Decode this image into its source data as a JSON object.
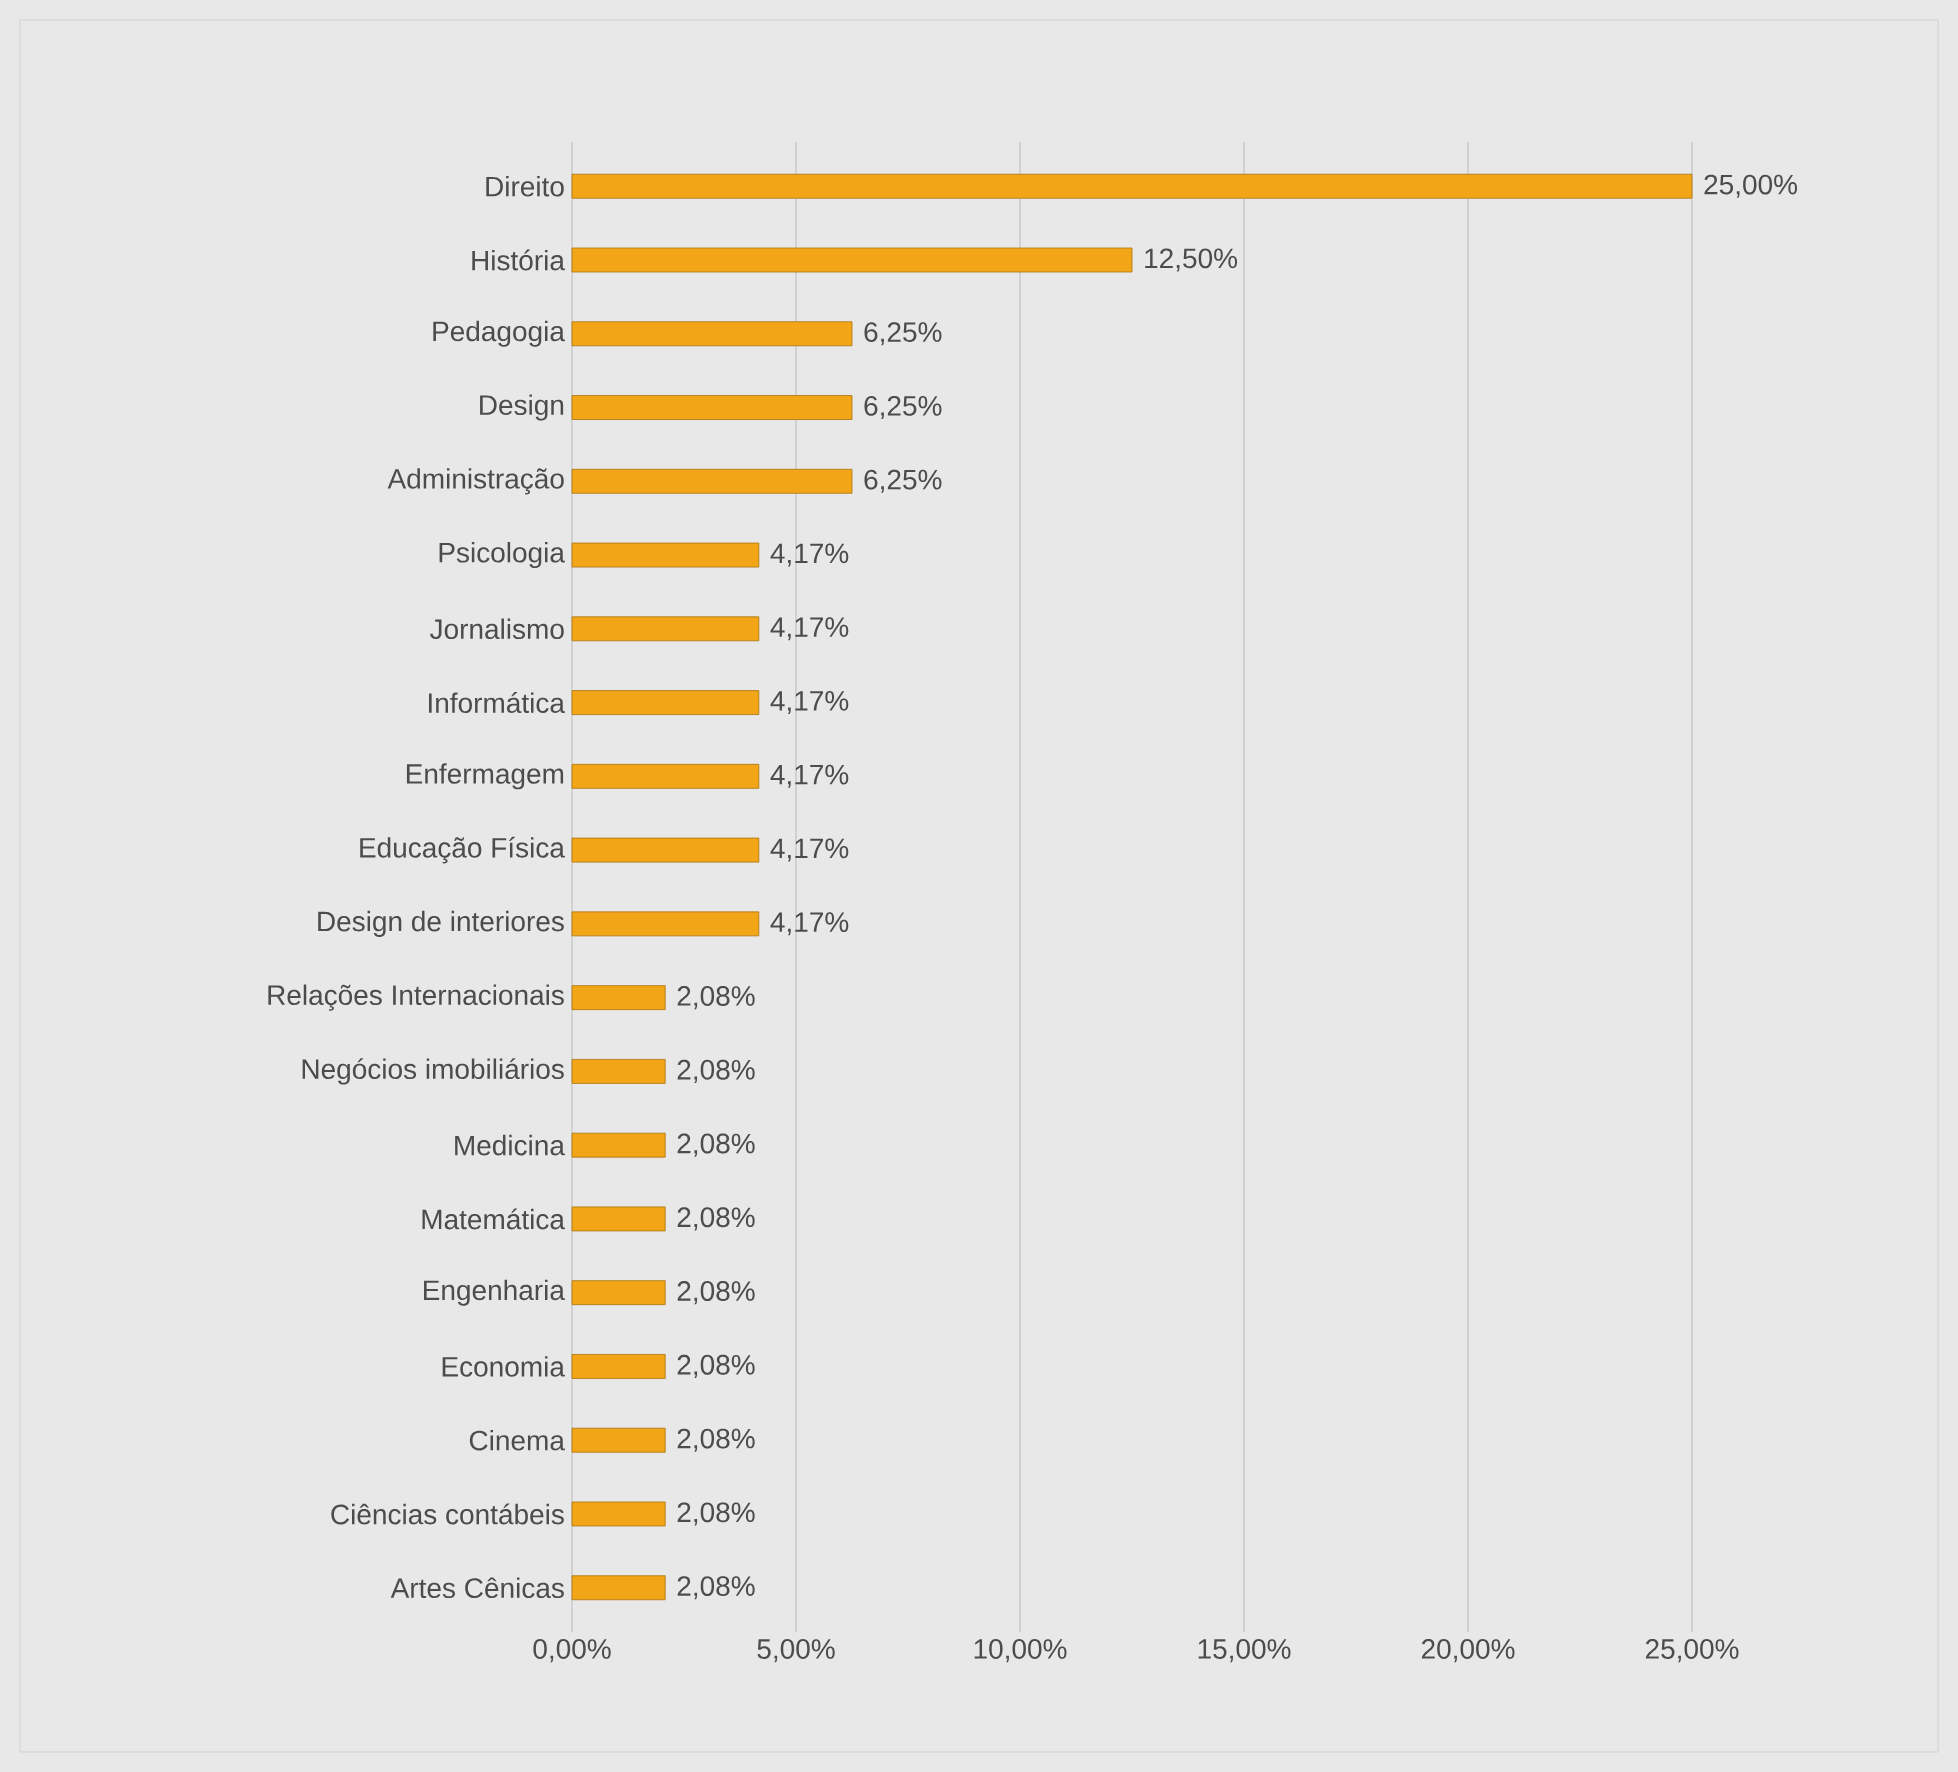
{
  "chart_data": {
    "type": "bar",
    "orientation": "horizontal",
    "color": "#f2a516",
    "categories": [
      "Direito",
      "História",
      "Pedagogia",
      "Design",
      "Administração",
      "Psicologia",
      "Jornalismo",
      "Informática",
      "Enfermagem",
      "Educação Física",
      "Design de interiores",
      "Relações Internacionais",
      "Negócios imobiliários",
      "Medicina",
      "Matemática",
      "Engenharia",
      "Economia",
      "Cinema",
      "Ciências contábeis",
      "Artes Cênicas"
    ],
    "values": [
      25.0,
      12.5,
      6.25,
      6.25,
      6.25,
      4.17,
      4.17,
      4.17,
      4.17,
      4.17,
      4.17,
      2.08,
      2.08,
      2.08,
      2.08,
      2.08,
      2.08,
      2.08,
      2.08,
      2.08
    ],
    "value_labels": [
      "25,00%",
      "12,50%",
      "6,25%",
      "6,25%",
      "6,25%",
      "4,17%",
      "4,17%",
      "4,17%",
      "4,17%",
      "4,17%",
      "4,17%",
      "2,08%",
      "2,08%",
      "2,08%",
      "2,08%",
      "2,08%",
      "2,08%",
      "2,08%",
      "2,08%",
      "2,08%"
    ],
    "xlim": [
      0,
      25
    ],
    "xticks": [
      {
        "value": 0,
        "label": "0,00%"
      },
      {
        "value": 5,
        "label": "5,00%"
      },
      {
        "value": 10,
        "label": "10,00%"
      },
      {
        "value": 15,
        "label": "15,00%"
      },
      {
        "value": 20,
        "label": "20,00%"
      },
      {
        "value": 25,
        "label": "25,00%"
      }
    ],
    "grid": "x"
  }
}
